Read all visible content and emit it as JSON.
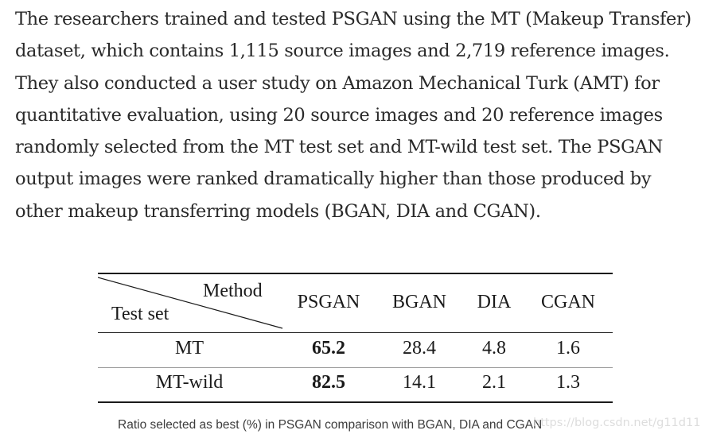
{
  "paragraph": {
    "lines": [
      "The researchers trained and tested PSGAN using the MT (Makeup Transfer)",
      "dataset, which contains 1,115 source images and 2,719 reference images.",
      "They also conducted a user study on Amazon Mechanical Turk (AMT) for",
      "quantitative evaluation, using 20 source images and 20 reference images",
      "randomly selected from the MT test set and MT-wild test set. The PSGAN",
      "output images were ranked dramatically higher than those produced by",
      "other makeup transferring models (BGAN, DIA and CGAN)."
    ]
  },
  "table": {
    "corner_top_label": "Method",
    "corner_bottom_label": "Test set",
    "columns": [
      "PSGAN",
      "BGAN",
      "DIA",
      "CGAN"
    ],
    "rows": [
      {
        "test_set": "MT",
        "values": [
          "65.2",
          "28.4",
          "4.8",
          "1.6"
        ]
      },
      {
        "test_set": "MT-wild",
        "values": [
          "82.5",
          "14.1",
          "2.1",
          "1.3"
        ]
      }
    ]
  },
  "caption": "Ratio selected as best (%) in PSGAN comparison with BGAN, DIA and CGAN",
  "watermark": "https://blog.csdn.net/g11d111"
}
